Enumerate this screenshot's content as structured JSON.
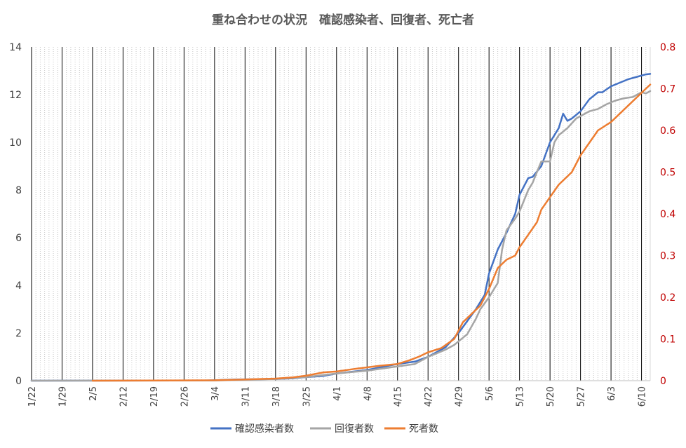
{
  "chart_data": {
    "type": "line",
    "title": "重ね合わせの状況　確認感染者、回復者、死亡者",
    "xlabel": "",
    "ylabel": "",
    "x_tick_labels": [
      "1/22",
      "1/29",
      "2/5",
      "2/12",
      "2/19",
      "2/26",
      "3/4",
      "3/11",
      "3/18",
      "3/25",
      "4/1",
      "4/8",
      "4/15",
      "4/22",
      "4/29",
      "5/6",
      "5/13",
      "5/20",
      "5/27",
      "6/3",
      "6/10"
    ],
    "x_tick_day_offsets": [
      0,
      7,
      14,
      21,
      28,
      35,
      42,
      49,
      56,
      63,
      70,
      77,
      84,
      91,
      98,
      105,
      112,
      119,
      126,
      133,
      140
    ],
    "x_day_range": [
      0,
      142
    ],
    "y_left": {
      "min": 0,
      "max": 14,
      "step": 2,
      "ticks": [
        "0",
        "2",
        "4",
        "6",
        "8",
        "10",
        "12",
        "14"
      ]
    },
    "y_right": {
      "min": 0,
      "max": 0.8,
      "step": 0.1,
      "ticks": [
        "0",
        "0.1",
        "0.2",
        "0.3",
        "0.4",
        "0.5",
        "0.6",
        "0.7",
        "0.8"
      ]
    },
    "grid": {
      "major_vertical_every_days": 7,
      "minor_vertical_every_days": 1,
      "horizontal": false
    },
    "legend_position": "bottom",
    "series": [
      {
        "name": "確認感染者数",
        "color": "#4472c4",
        "axis": "left",
        "points": [
          [
            0,
            0
          ],
          [
            40,
            0.01
          ],
          [
            47,
            0.05
          ],
          [
            56,
            0.07
          ],
          [
            60,
            0.1
          ],
          [
            63,
            0.15
          ],
          [
            67,
            0.2
          ],
          [
            70,
            0.3
          ],
          [
            77,
            0.45
          ],
          [
            84,
            0.7
          ],
          [
            88,
            0.8
          ],
          [
            91,
            1.0
          ],
          [
            95,
            1.4
          ],
          [
            98,
            2.0
          ],
          [
            100,
            2.5
          ],
          [
            102,
            3.0
          ],
          [
            104,
            3.6
          ],
          [
            105,
            4.5
          ],
          [
            107,
            5.5
          ],
          [
            109,
            6.2
          ],
          [
            111,
            7.0
          ],
          [
            112,
            7.8
          ],
          [
            114,
            8.5
          ],
          [
            115,
            8.55
          ],
          [
            117,
            9.0
          ],
          [
            119,
            10.0
          ],
          [
            120,
            10.3
          ],
          [
            121,
            10.6
          ],
          [
            122,
            11.2
          ],
          [
            123,
            10.9
          ],
          [
            124,
            11.0
          ],
          [
            126,
            11.3
          ],
          [
            128,
            11.8
          ],
          [
            130,
            12.1
          ],
          [
            131,
            12.1
          ],
          [
            133,
            12.35
          ],
          [
            135,
            12.5
          ],
          [
            137,
            12.65
          ],
          [
            139,
            12.75
          ],
          [
            141,
            12.85
          ],
          [
            142,
            12.87
          ]
        ]
      },
      {
        "name": "回復者数",
        "color": "#a5a5a5",
        "axis": "left",
        "points": [
          [
            0,
            0
          ],
          [
            42,
            0.01
          ],
          [
            49,
            0.04
          ],
          [
            56,
            0.07
          ],
          [
            63,
            0.15
          ],
          [
            70,
            0.3
          ],
          [
            77,
            0.42
          ],
          [
            84,
            0.6
          ],
          [
            88,
            0.7
          ],
          [
            91,
            1.0
          ],
          [
            95,
            1.3
          ],
          [
            97,
            1.5
          ],
          [
            99,
            1.8
          ],
          [
            100,
            1.95
          ],
          [
            102,
            2.6
          ],
          [
            103,
            3.0
          ],
          [
            105,
            3.5
          ],
          [
            107,
            4.1
          ],
          [
            108,
            5.5
          ],
          [
            109,
            6.3
          ],
          [
            111,
            6.8
          ],
          [
            112,
            7.1
          ],
          [
            114,
            8.0
          ],
          [
            115,
            8.3
          ],
          [
            117,
            9.2
          ],
          [
            119,
            9.2
          ],
          [
            120,
            10.0
          ],
          [
            121,
            10.3
          ],
          [
            123,
            10.6
          ],
          [
            125,
            11.0
          ],
          [
            126,
            11.1
          ],
          [
            128,
            11.3
          ],
          [
            130,
            11.4
          ],
          [
            132,
            11.6
          ],
          [
            134,
            11.75
          ],
          [
            136,
            11.85
          ],
          [
            138,
            11.9
          ],
          [
            140,
            12.1
          ],
          [
            141,
            12.05
          ],
          [
            142,
            12.15
          ]
        ]
      },
      {
        "name": "死者数",
        "color": "#ed7d31",
        "axis": "right",
        "points": [
          [
            14,
            0
          ],
          [
            28,
            0.0005
          ],
          [
            42,
            0.001
          ],
          [
            49,
            0.003
          ],
          [
            56,
            0.005
          ],
          [
            60,
            0.008
          ],
          [
            63,
            0.012
          ],
          [
            67,
            0.02
          ],
          [
            70,
            0.022
          ],
          [
            74,
            0.028
          ],
          [
            77,
            0.032
          ],
          [
            80,
            0.036
          ],
          [
            84,
            0.04
          ],
          [
            87,
            0.05
          ],
          [
            89,
            0.058
          ],
          [
            91,
            0.068
          ],
          [
            94,
            0.078
          ],
          [
            97,
            0.1
          ],
          [
            99,
            0.14
          ],
          [
            101,
            0.16
          ],
          [
            103,
            0.18
          ],
          [
            105,
            0.22
          ],
          [
            107,
            0.27
          ],
          [
            109,
            0.29
          ],
          [
            111,
            0.3
          ],
          [
            112,
            0.32
          ],
          [
            114,
            0.35
          ],
          [
            116,
            0.38
          ],
          [
            117,
            0.41
          ],
          [
            119,
            0.44
          ],
          [
            121,
            0.47
          ],
          [
            124,
            0.5
          ],
          [
            126,
            0.54
          ],
          [
            128,
            0.57
          ],
          [
            130,
            0.6
          ],
          [
            133,
            0.62
          ],
          [
            135,
            0.64
          ],
          [
            137,
            0.66
          ],
          [
            139,
            0.68
          ],
          [
            141,
            0.7
          ],
          [
            142,
            0.71
          ]
        ]
      }
    ]
  }
}
